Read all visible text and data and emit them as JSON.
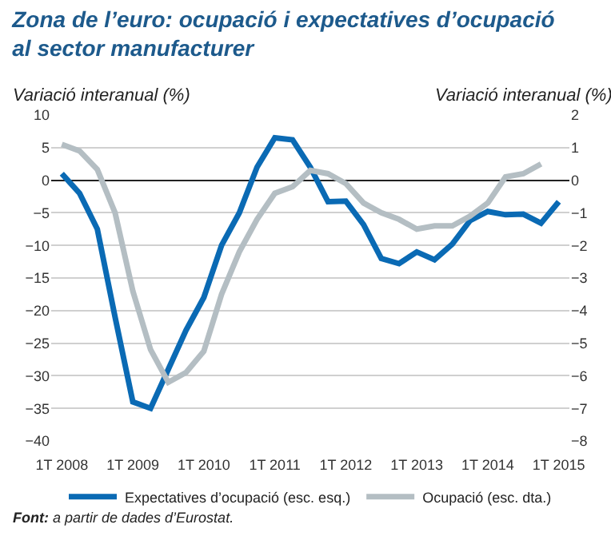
{
  "chart_data": {
    "type": "line",
    "title": "Zona de l’euro: ocupació i expectatives d’ocupació al sector manufacturer",
    "ylabel": "Variació interanual (%)",
    "y2label": "Variació interanual (%)",
    "categories": [
      "1T 2008",
      null,
      null,
      null,
      "1T 2009",
      null,
      null,
      null,
      "1T 2010",
      null,
      null,
      null,
      "1T 2011",
      null,
      null,
      null,
      "1T 2012",
      null,
      null,
      null,
      "1T 2013",
      null,
      null,
      null,
      "1T 2014",
      null,
      null,
      null,
      "1T 2015"
    ],
    "series": [
      {
        "name": "Expectatives d’ocupació (esc. esq.)",
        "color": "#0a6ab4",
        "values": [
          1,
          -2,
          -7.5,
          -21,
          -34,
          -35,
          -29,
          -23,
          -18,
          -10,
          -5,
          2,
          6.5,
          6.2,
          2,
          -3.3,
          -3.2,
          -6.8,
          -12,
          -12.8,
          -11,
          -12.2,
          -9.8,
          -6.2,
          -4.8,
          -5.3,
          -5.2,
          -6.6,
          -3.3
        ]
      },
      {
        "name": "Ocupació (esc. dta.)",
        "color": "#b4bec3",
        "axis": "y2",
        "values": [
          1.1,
          0.9,
          0.33,
          -1.0,
          -3.4,
          -5.2,
          -6.2,
          -5.9,
          -5.25,
          -3.5,
          -2.2,
          -1.2,
          -0.4,
          -0.2,
          0.3,
          0.2,
          -0.1,
          -0.7,
          -1.0,
          -1.2,
          -1.5,
          -1.4,
          -1.4,
          -1.1,
          -0.7,
          0.1,
          0.2,
          0.5,
          null
        ]
      }
    ],
    "ylim": [
      -40,
      10
    ],
    "yticks": [
      -40,
      -35,
      -30,
      -25,
      -20,
      -15,
      -10,
      -5,
      0,
      5,
      10
    ],
    "y2lim": [
      -8,
      2
    ],
    "y2ticks": [
      -8,
      -7,
      -6,
      -5,
      -4,
      -3,
      -2,
      -1,
      0,
      1,
      2
    ],
    "grid": "y",
    "legend": "bottom",
    "marker": "none",
    "line_style": "solid",
    "annotations": [
      "Font: a partir de dades d’Eurostat."
    ]
  }
}
